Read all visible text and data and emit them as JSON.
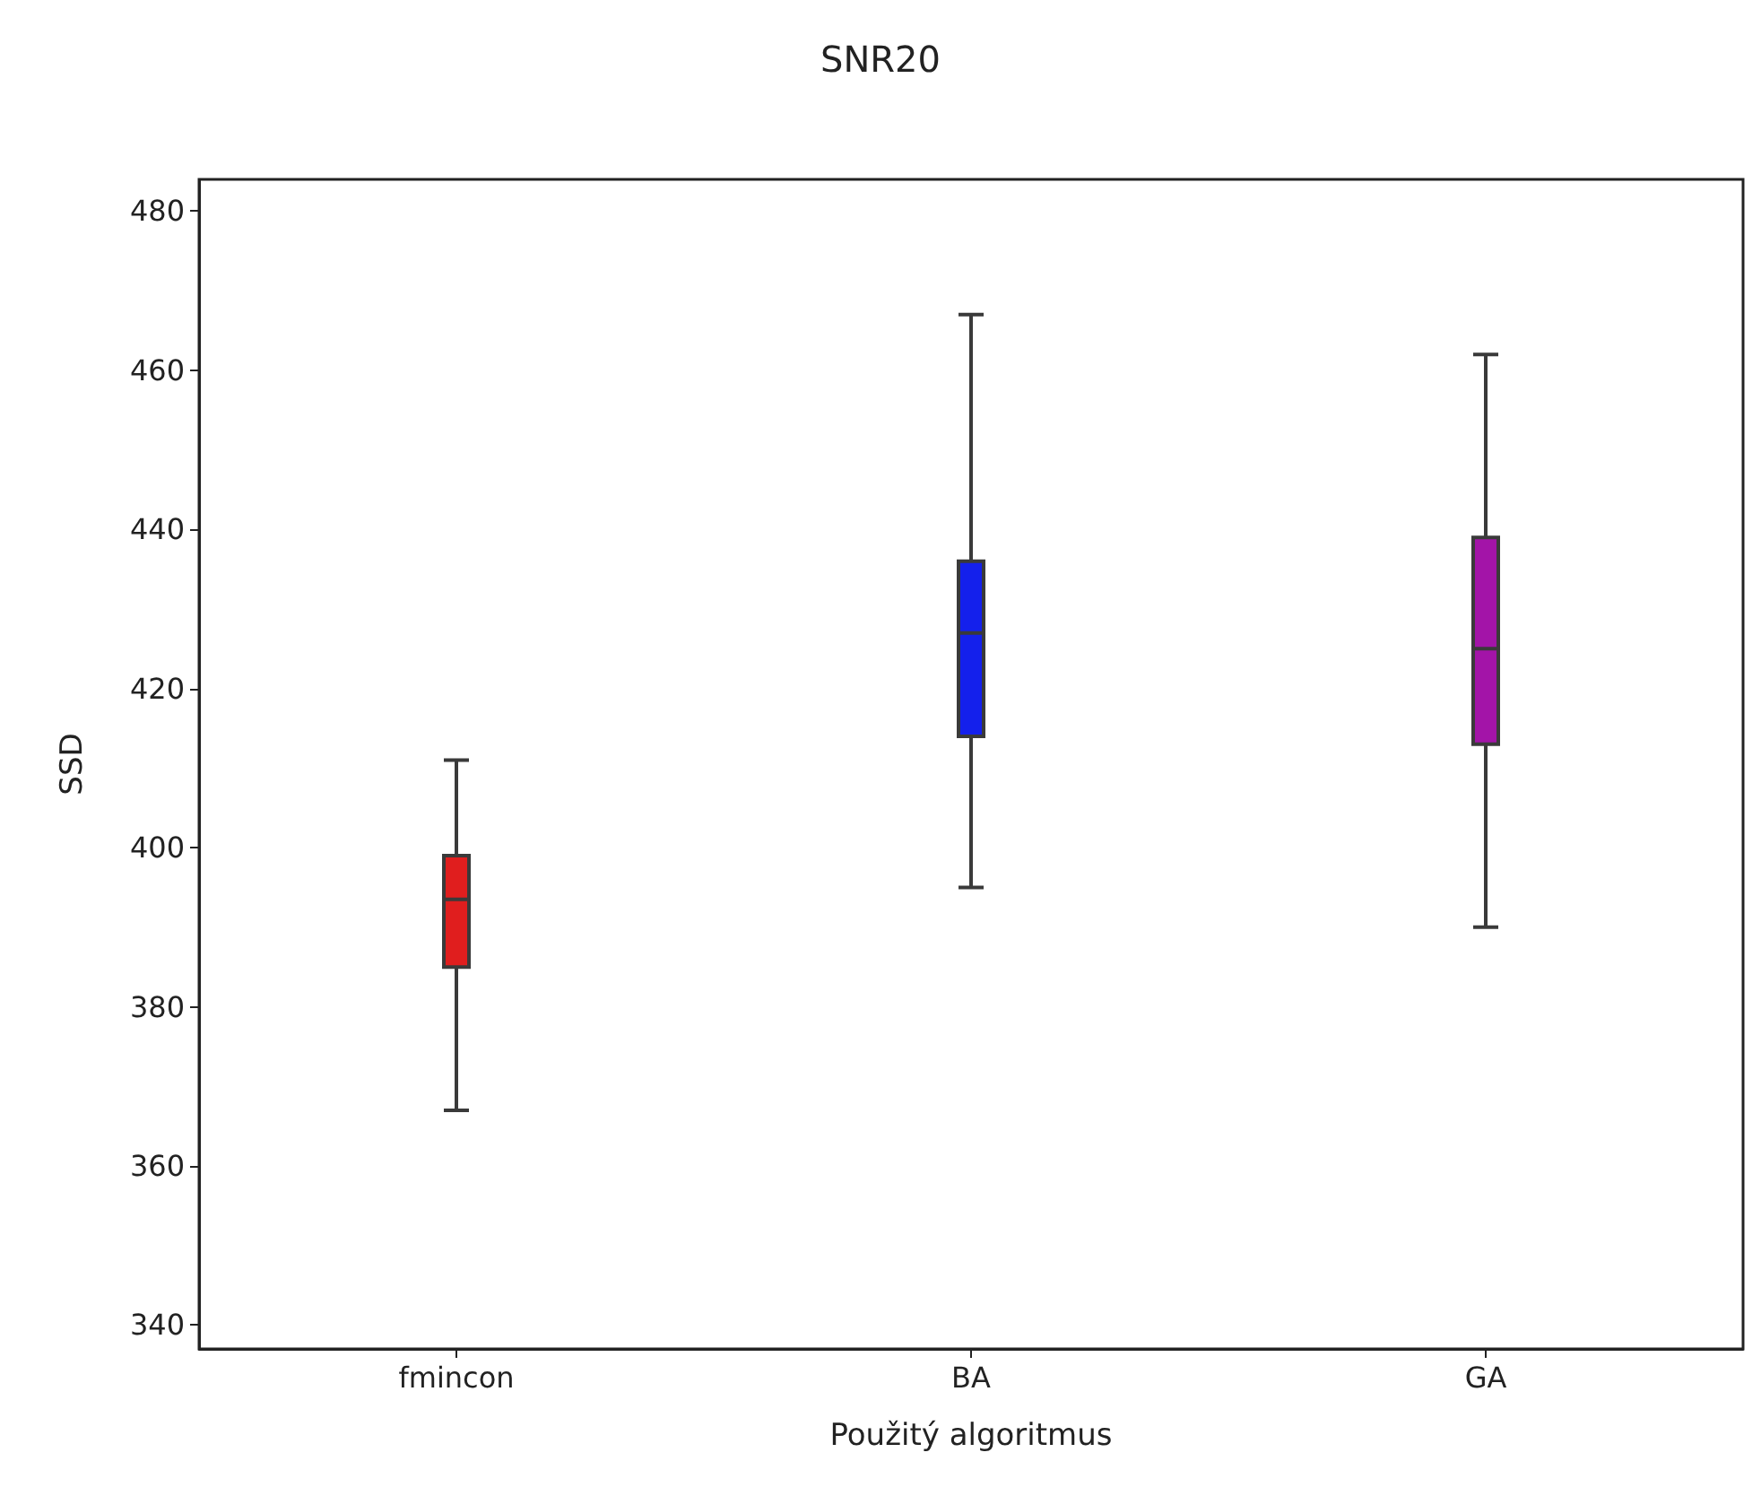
{
  "chart_data": {
    "type": "box",
    "title": "SNR20",
    "xlabel": "Použitý algoritmus",
    "ylabel": "SSD",
    "categories": [
      "fmincon",
      "BA",
      "GA"
    ],
    "boxes": [
      {
        "low": 367,
        "q1": 385,
        "median": 393.5,
        "q3": 399,
        "high": 411
      },
      {
        "low": 395,
        "q1": 414,
        "median": 427,
        "q3": 436,
        "high": 467
      },
      {
        "low": 390,
        "q1": 413,
        "median": 425,
        "q3": 439,
        "high": 462
      }
    ],
    "colors": [
      "#e01e1e",
      "#1420ec",
      "#a314a8"
    ],
    "ylim": [
      337,
      484
    ],
    "yticks": [
      340,
      360,
      380,
      400,
      420,
      440,
      460,
      480
    ],
    "grid": false
  }
}
